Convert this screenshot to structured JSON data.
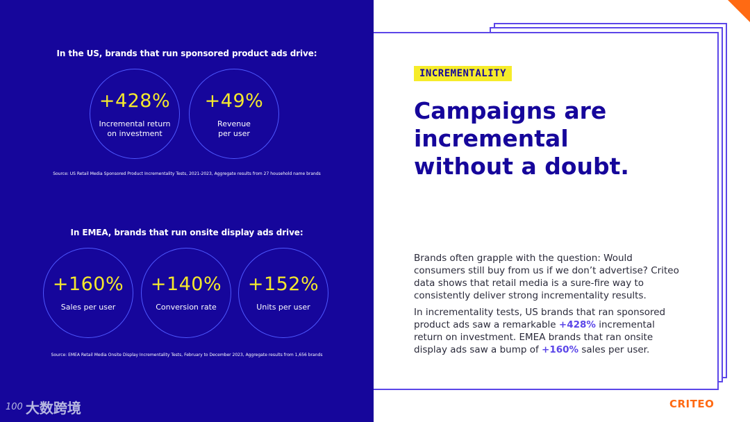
{
  "us": {
    "title": "In the US, brands that run sponsored product ads drive:",
    "stats": [
      {
        "value": "+428%",
        "label_line1": "Incremental return",
        "label_line2": "on investment"
      },
      {
        "value": "+49%",
        "label_line1": "Revenue",
        "label_line2": "per user"
      }
    ],
    "source": "Source: US Retail Media Sponsored Product Incrementality Tests, 2021-2023, Aggregate results from 27 household name brands"
  },
  "emea": {
    "title": "In EMEA, brands that run onsite display ads drive:",
    "stats": [
      {
        "value": "+160%",
        "label": "Sales per user"
      },
      {
        "value": "+140%",
        "label": "Conversion rate"
      },
      {
        "value": "+152%",
        "label": "Units per user"
      }
    ],
    "source": "Source: EMEA Retail Media Onsite Display Incrementality Tests, February to December 2023, Aggregate results from 1,656 brands"
  },
  "watermark": {
    "logo": "100",
    "text": "大数跨境"
  },
  "tag": "INCREMENTALITY",
  "headline": {
    "line1": "Campaigns are",
    "line2": "incremental",
    "line3": "without a doubt."
  },
  "body": {
    "para1": "Brands often grapple with the question: Would consumers still buy from us if we don’t advertise? Criteo data shows that retail media is a sure-fire way to consistently deliver strong incrementality results.",
    "para2_a": "In incrementality tests, US brands that ran sponsored product ads saw a remarkable ",
    "para2_b": "+428%",
    "para2_c": " incremental return on investment. EMEA brands that ran onsite display ads saw a bump of ",
    "para2_d": "+160%",
    "para2_e": " sales per user."
  },
  "brand": "CRITEO",
  "colors": {
    "panel": "#16069b",
    "accent": "#f4e82d",
    "ring": "#4f58ff",
    "orange": "#ff6a13",
    "purple": "#5b46e8"
  }
}
